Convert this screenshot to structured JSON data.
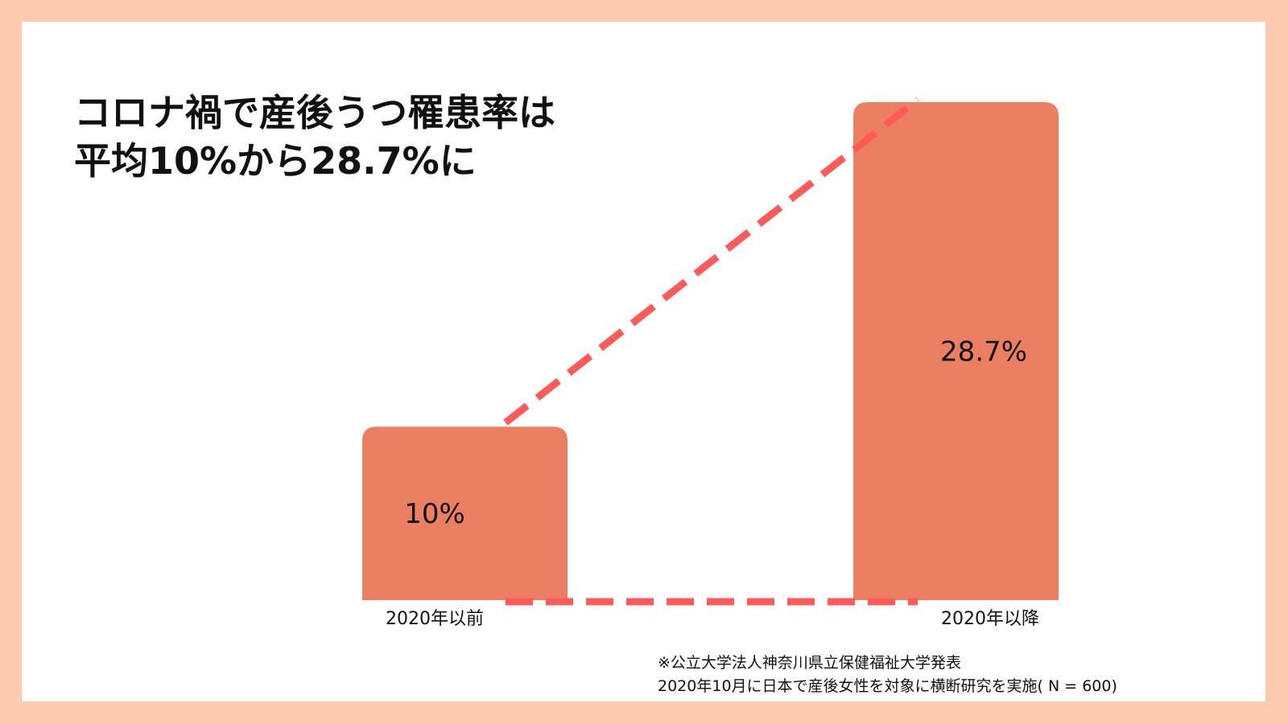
{
  "chart_data": {
    "type": "bar",
    "title": [
      "コロナ禍で産後うつ罹患率は",
      "平均10%から28.7%に"
    ],
    "categories": [
      "2020年以前",
      "2020年以降"
    ],
    "values": [
      10,
      28.7
    ],
    "value_labels": [
      "10%",
      "28.7%"
    ],
    "xlabel": "",
    "ylabel": "",
    "ylim": [
      0,
      30
    ],
    "grid": false,
    "legend": "none"
  },
  "notes": [
    "※公立大学法人神奈川県立保健福祉大学発表",
    "2020年10月に日本で産後女性を対象に横断研究を実施( N = 600)"
  ],
  "colors": {
    "page_background": "#ffcbb0",
    "card_background": "#ffffff",
    "bar": "#ec7f62",
    "dashed_line": "#ff5a5a",
    "text": "#111111"
  }
}
